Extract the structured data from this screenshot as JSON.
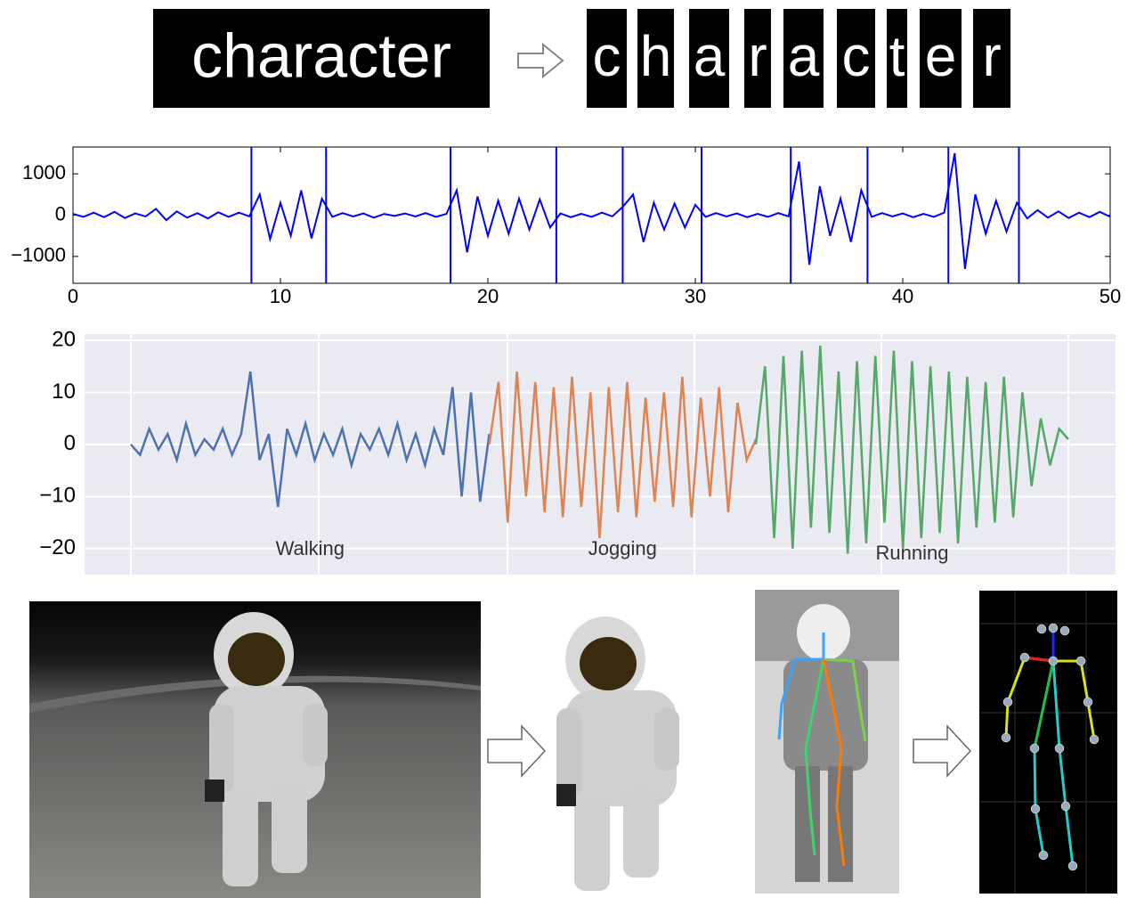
{
  "header": {
    "word": "character",
    "letters": [
      "c",
      "h",
      "a",
      "r",
      "a",
      "c",
      "t",
      "e",
      "r"
    ]
  },
  "chart_data": [
    {
      "type": "line",
      "x": [
        0,
        0.5,
        1,
        1.5,
        2,
        2.5,
        3,
        3.5,
        4,
        4.5,
        5,
        5.5,
        6,
        6.5,
        7,
        7.5,
        8,
        8.5,
        9,
        9.5,
        10,
        10.5,
        11,
        11.5,
        12,
        12.5,
        13,
        13.5,
        14,
        14.5,
        15,
        15.5,
        16,
        16.5,
        17,
        17.5,
        18,
        18.5,
        19,
        19.5,
        20,
        20.5,
        21,
        21.5,
        22,
        22.5,
        23,
        23.5,
        24,
        24.5,
        25,
        25.5,
        26,
        26.5,
        27,
        27.5,
        28,
        28.5,
        29,
        29.5,
        30,
        30.5,
        31,
        31.5,
        32,
        32.5,
        33,
        33.5,
        34,
        34.5,
        35,
        35.5,
        36,
        36.5,
        37,
        37.5,
        38,
        38.5,
        39,
        39.5,
        40,
        40.5,
        41,
        41.5,
        42,
        42.5,
        43,
        43.5,
        44,
        44.5,
        45,
        45.5,
        46,
        46.5,
        47,
        47.5,
        48,
        48.5,
        49,
        49.5,
        50
      ],
      "series": [
        {
          "color": "#0000ff",
          "values": [
            30,
            -40,
            60,
            -50,
            80,
            -70,
            40,
            -30,
            150,
            -120,
            90,
            -60,
            50,
            -80,
            70,
            -40,
            60,
            -30,
            500,
            -580,
            300,
            -500,
            600,
            -560,
            400,
            -40,
            50,
            -30,
            40,
            -60,
            30,
            -20,
            40,
            -30,
            50,
            -40,
            30,
            600,
            -900,
            450,
            -500,
            350,
            -450,
            400,
            -350,
            380,
            -300,
            40,
            -50,
            30,
            -40,
            60,
            -30,
            200,
            500,
            -650,
            300,
            -350,
            280,
            -300,
            250,
            -40,
            50,
            -30,
            40,
            -50,
            30,
            -40,
            50,
            -30,
            1300,
            -1200,
            700,
            -500,
            400,
            -650,
            600,
            -40,
            50,
            -30,
            40,
            -50,
            30,
            -40,
            60,
            1500,
            -1300,
            500,
            -450,
            350,
            -400,
            300,
            -80,
            120,
            -60,
            90,
            -70,
            60,
            -50,
            80,
            -40
          ]
        }
      ],
      "vlines": [
        8.6,
        12.2,
        18.2,
        23.3,
        26.5,
        30.3,
        34.6,
        38.3,
        42.2,
        45.6
      ],
      "xlim": [
        0,
        50
      ],
      "xticks": [
        0,
        10,
        20,
        30,
        40,
        50
      ],
      "ylim": [
        -1650,
        1650
      ],
      "yticks": [
        {
          "value": -1000,
          "label": "−1000"
        },
        0,
        1000
      ]
    },
    {
      "type": "line",
      "series": [
        {
          "name": "Walking",
          "color": "#4c72b0",
          "values": [
            0,
            -2,
            3,
            -1,
            2,
            -3,
            4,
            -2,
            1,
            -1,
            3,
            -2,
            2,
            14,
            -3,
            2,
            -12,
            3,
            -2,
            4,
            -3,
            2,
            -2,
            3,
            -4,
            2,
            -1,
            3,
            -2,
            4,
            -3,
            2,
            -4,
            3,
            -2,
            11,
            -10,
            10,
            -11,
            2
          ]
        },
        {
          "name": "Jogging",
          "color": "#dd8452",
          "values": [
            0,
            12,
            -15,
            14,
            -10,
            12,
            -13,
            11,
            -14,
            13,
            -12,
            10,
            -18,
            11,
            -13,
            12,
            -14,
            9,
            -11,
            10,
            -12,
            13,
            -14,
            9,
            -10,
            11,
            -13,
            8,
            -3,
            1
          ]
        },
        {
          "name": "Running",
          "color": "#55a868",
          "values": [
            0,
            15,
            -18,
            17,
            -20,
            18,
            -16,
            19,
            -17,
            14,
            -21,
            16,
            -19,
            17,
            -15,
            18,
            -20,
            16,
            -18,
            15,
            -17,
            14,
            -19,
            13,
            -16,
            12,
            -15,
            13,
            -14,
            10,
            -8,
            5,
            -4,
            3,
            1
          ]
        }
      ],
      "ylim": [
        -25,
        21.2
      ],
      "yticks": [
        {
          "value": -20,
          "label": "−20"
        },
        {
          "value": -10,
          "label": "−10"
        },
        0,
        10,
        20
      ]
    }
  ]
}
